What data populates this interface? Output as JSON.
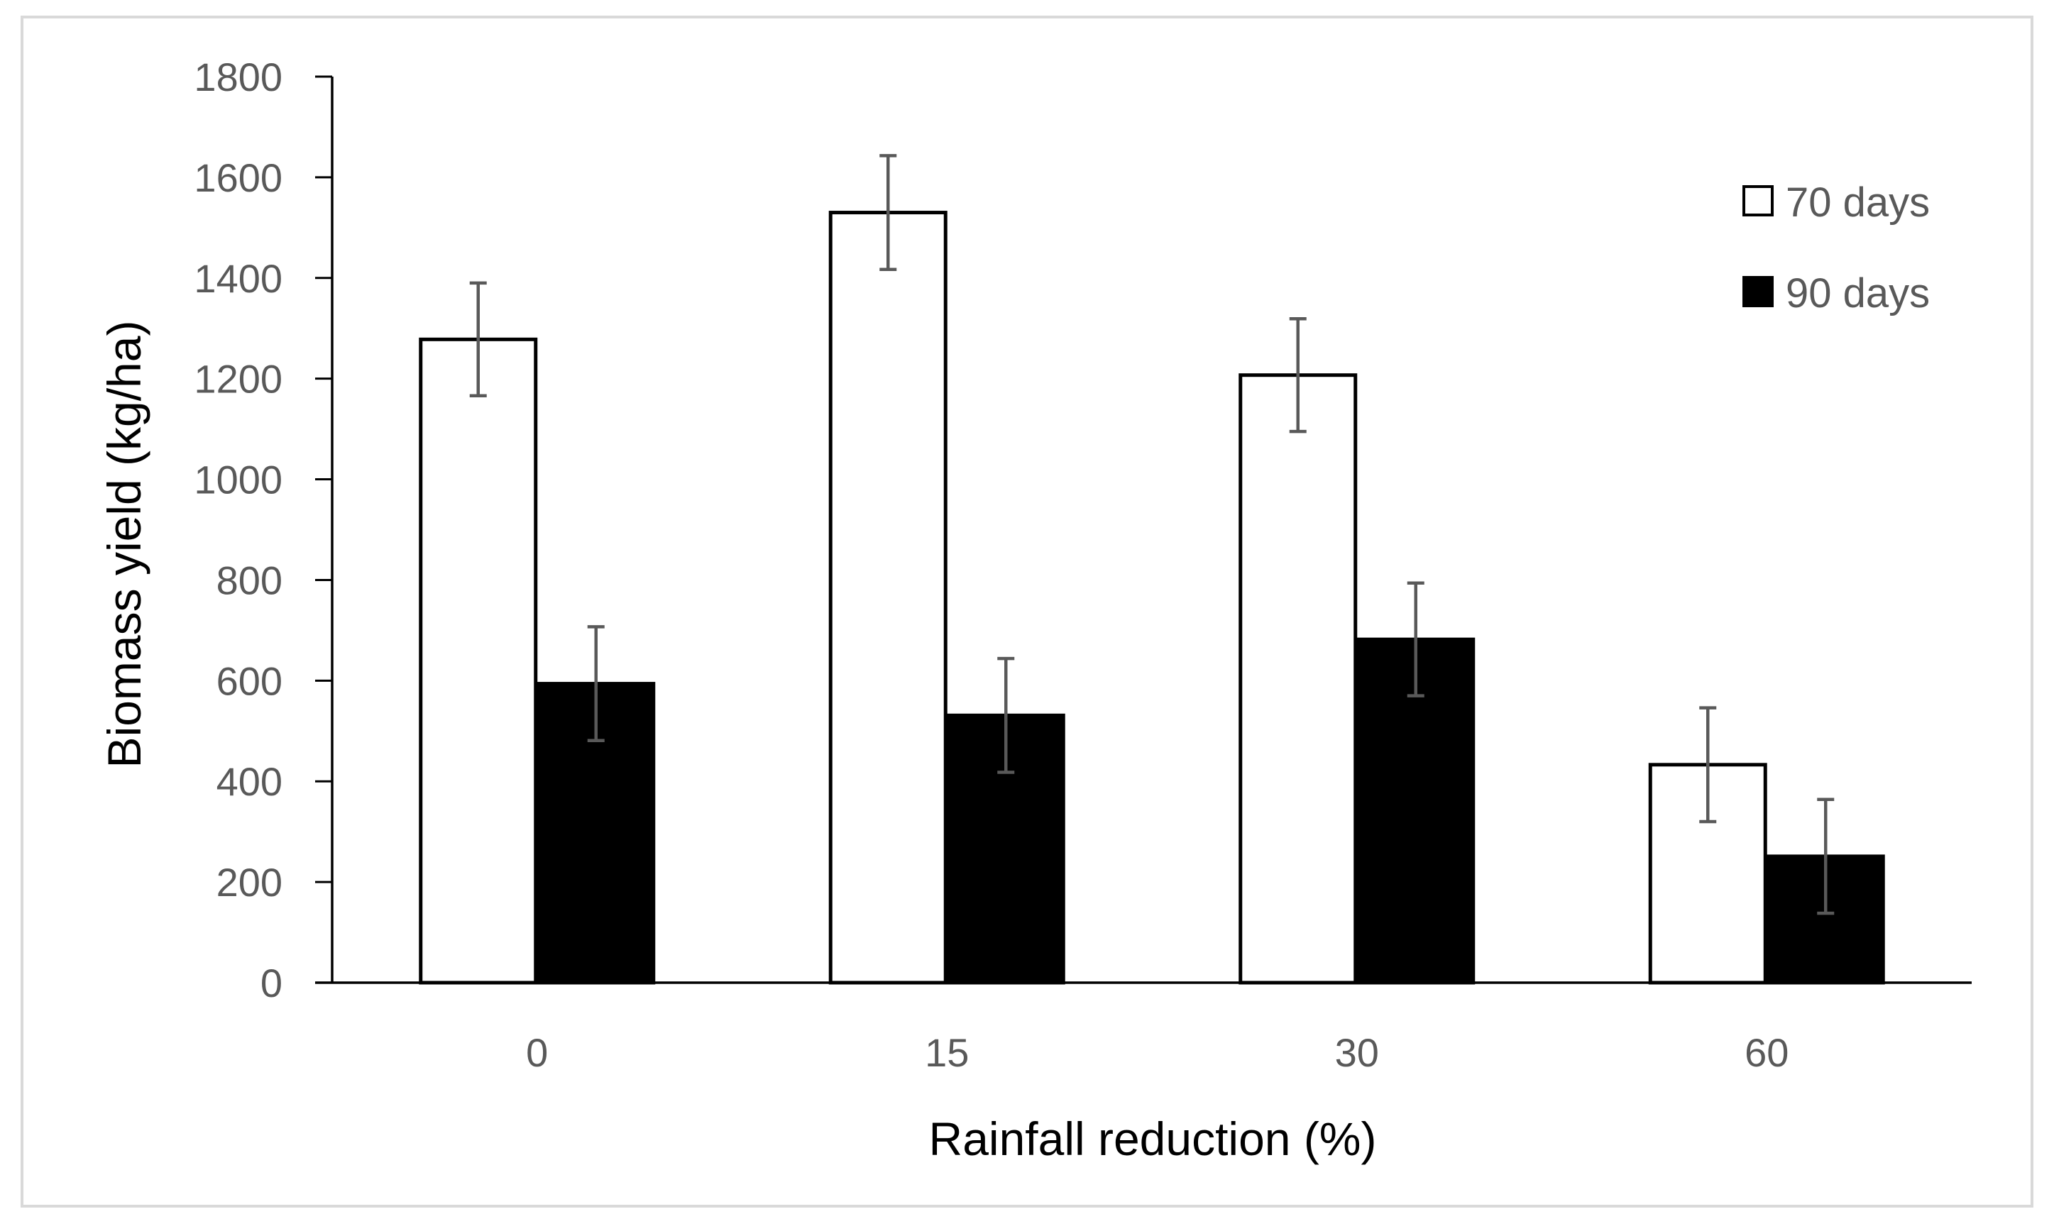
{
  "chart_data": {
    "type": "bar",
    "title": "",
    "xlabel": "Rainfall reduction (%)",
    "ylabel": "Biomass yield (kg/ha)",
    "categories": [
      "0",
      "15",
      "30",
      "60"
    ],
    "ylim": [
      0,
      1800
    ],
    "yticks": [
      0,
      200,
      400,
      600,
      800,
      1000,
      1200,
      1400,
      1600,
      1800
    ],
    "grid": false,
    "legend_position": "top-right",
    "series": [
      {
        "name": "70 days",
        "fill": "#ffffff",
        "stroke": "#000000",
        "values": [
          1278,
          1530,
          1207,
          433
        ],
        "error": [
          112,
          113,
          112,
          113
        ]
      },
      {
        "name": "90 days",
        "fill": "#000000",
        "stroke": "#000000",
        "values": [
          594,
          531,
          682,
          251
        ],
        "error": [
          113,
          113,
          112,
          113
        ]
      }
    ],
    "colors": {
      "axis": "#000000",
      "tick_text": "#595959",
      "error_bar": "#595959",
      "frame": "#d9d9d9"
    }
  }
}
